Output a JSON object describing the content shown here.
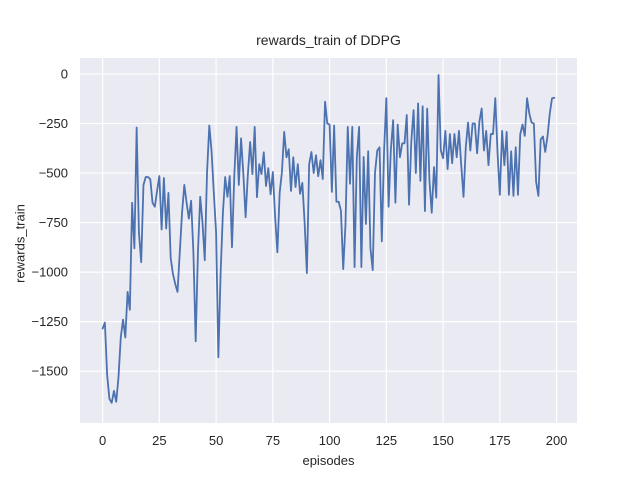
{
  "figure": {
    "background": "#ffffff"
  },
  "chart_data": {
    "type": "line",
    "title": "rewards_train of DDPG",
    "xlabel": "episodes",
    "ylabel": "rewards_train",
    "x_ticks": [
      0,
      25,
      50,
      75,
      100,
      125,
      150,
      175,
      200
    ],
    "y_ticks": [
      0,
      -250,
      -500,
      -750,
      -1000,
      -1250,
      -1500
    ],
    "xlim": [
      -9.96,
      209.0
    ],
    "ylim": [
      -1762,
      81
    ],
    "grid": true,
    "legend": "none",
    "line_color": "#4c72b0",
    "axes_bg": "#eaeaf2",
    "grid_color": "#ffffff",
    "text_color": "#262626",
    "x_start": 0,
    "x_step": 1,
    "series": [
      {
        "name": "rewards_train",
        "values": [
          -1285,
          -1255,
          -1520,
          -1640,
          -1660,
          -1600,
          -1655,
          -1530,
          -1330,
          -1240,
          -1330,
          -1100,
          -1190,
          -650,
          -880,
          -270,
          -800,
          -950,
          -560,
          -520,
          -520,
          -530,
          -650,
          -670,
          -590,
          -515,
          -785,
          -525,
          -780,
          -600,
          -930,
          -1010,
          -1060,
          -1100,
          -900,
          -700,
          -560,
          -650,
          -730,
          -640,
          -900,
          -1350,
          -900,
          -620,
          -750,
          -940,
          -500,
          -260,
          -390,
          -600,
          -800,
          -1430,
          -1000,
          -700,
          -520,
          -620,
          -515,
          -875,
          -520,
          -267,
          -560,
          -325,
          -505,
          -723,
          -505,
          -343,
          -505,
          -267,
          -622,
          -455,
          -505,
          -395,
          -565,
          -475,
          -607,
          -495,
          -720,
          -900,
          -600,
          -495,
          -292,
          -420,
          -380,
          -590,
          -420,
          -570,
          -455,
          -605,
          -550,
          -750,
          -1005,
          -455,
          -394,
          -500,
          -410,
          -516,
          -435,
          -530,
          -140,
          -250,
          -255,
          -595,
          -260,
          -645,
          -645,
          -690,
          -985,
          -760,
          -267,
          -554,
          -267,
          -975,
          -419,
          -267,
          -975,
          -419,
          -757,
          -390,
          -880,
          -990,
          -500,
          -386,
          -370,
          -845,
          -390,
          -122,
          -670,
          -380,
          -233,
          -650,
          -255,
          -420,
          -350,
          -350,
          -207,
          -660,
          -340,
          -182,
          -500,
          -148,
          -539,
          -163,
          -692,
          -174,
          -539,
          -700,
          -470,
          -624,
          -5,
          -386,
          -425,
          -287,
          -480,
          -303,
          -450,
          -303,
          -420,
          -287,
          -460,
          -620,
          -370,
          -245,
          -386,
          -250,
          -250,
          -400,
          -240,
          -174,
          -386,
          -287,
          -460,
          -303,
          -303,
          -122,
          -400,
          -610,
          -287,
          -460,
          -292,
          -610,
          -390,
          -615,
          -370,
          -610,
          -303,
          -255,
          -312,
          -122,
          -200,
          -245,
          -250,
          -545,
          -615,
          -330,
          -315,
          -393,
          -315,
          -200,
          -122,
          -120
        ]
      }
    ]
  }
}
